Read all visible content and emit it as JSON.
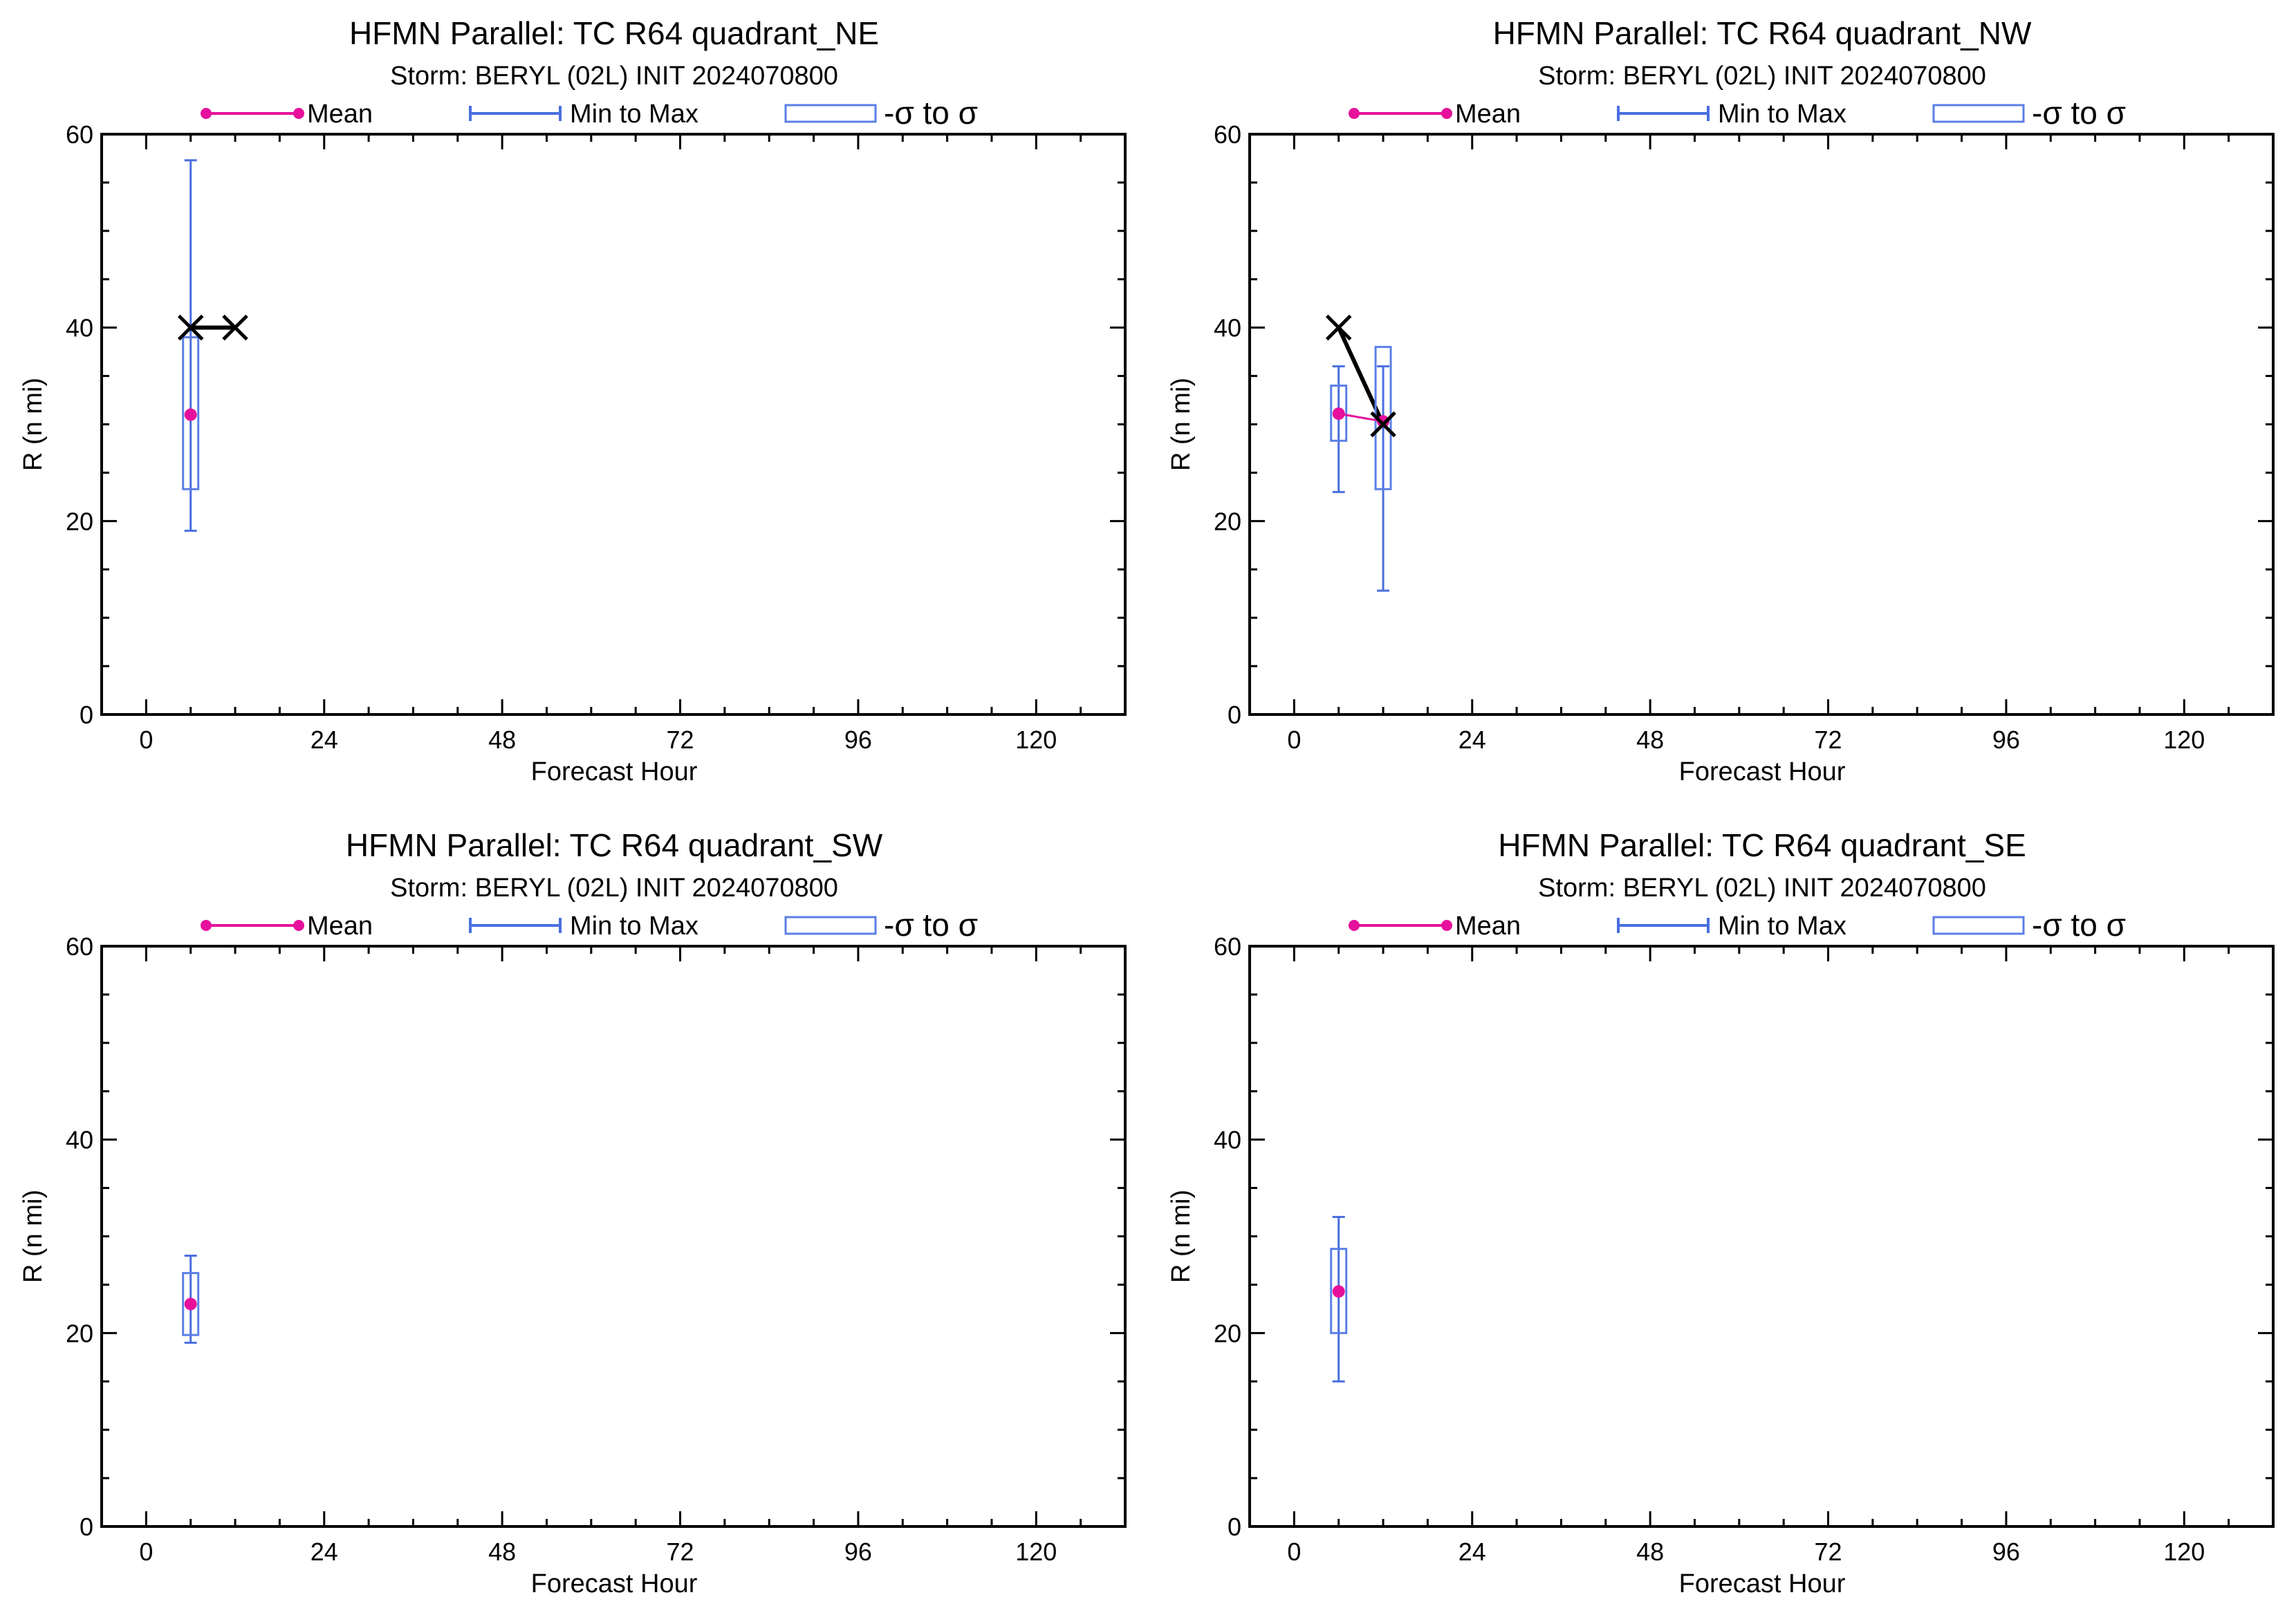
{
  "colors": {
    "mean": "#e6109c",
    "range": "#4a6fe0",
    "box": "#5b7fe6",
    "observed": "#000000",
    "axis": "#000000",
    "background": "#ffffff"
  },
  "legend": {
    "mean_label": "Mean",
    "range_label": "Min to Max",
    "sigma_label": "-σ to σ"
  },
  "chart_data": [
    {
      "type": "box",
      "title": "HFMN Parallel: TC  R64 quadrant_NE",
      "subtitle": "Storm: BERYL (02L) INIT 2024070800",
      "xlabel": "Forecast Hour",
      "ylabel": "R (n mi)",
      "xlim": [
        -6,
        132
      ],
      "ylim": [
        0,
        60
      ],
      "xticks": [
        0,
        24,
        48,
        72,
        96,
        120
      ],
      "yticks": [
        0,
        20,
        40,
        60
      ],
      "xtick_labels": [
        "0",
        "24",
        "48",
        "72",
        "96",
        "120"
      ],
      "ytick_labels": [
        "0",
        "20",
        "40",
        "60"
      ],
      "stats": [
        {
          "x": 6,
          "mean": 31,
          "min": 19,
          "max": 57.3,
          "sd_low": 23.3,
          "sd_high": 39
        }
      ],
      "mean_line": [
        [
          6,
          31
        ]
      ],
      "observed": [
        [
          6,
          40
        ],
        [
          12,
          40
        ]
      ]
    },
    {
      "type": "box",
      "title": "HFMN Parallel: TC  R64 quadrant_NW",
      "subtitle": "Storm: BERYL (02L) INIT 2024070800",
      "xlabel": "Forecast Hour",
      "ylabel": "R (n mi)",
      "xlim": [
        -6,
        132
      ],
      "ylim": [
        0,
        60
      ],
      "xticks": [
        0,
        24,
        48,
        72,
        96,
        120
      ],
      "yticks": [
        0,
        20,
        40,
        60
      ],
      "xtick_labels": [
        "0",
        "24",
        "48",
        "72",
        "96",
        "120"
      ],
      "ytick_labels": [
        "0",
        "20",
        "40",
        "60"
      ],
      "stats": [
        {
          "x": 6,
          "mean": 31.1,
          "min": 23,
          "max": 36,
          "sd_low": 28.3,
          "sd_high": 34
        },
        {
          "x": 12,
          "mean": 30.3,
          "min": 12.8,
          "max": 36,
          "sd_low": 23.3,
          "sd_high": 38
        }
      ],
      "mean_line": [
        [
          6,
          31.1
        ],
        [
          12,
          30.3
        ]
      ],
      "observed": [
        [
          6,
          40
        ],
        [
          12,
          30
        ]
      ]
    },
    {
      "type": "box",
      "title": "HFMN Parallel: TC  R64 quadrant_SW",
      "subtitle": "Storm: BERYL (02L) INIT 2024070800",
      "xlabel": "Forecast Hour",
      "ylabel": "R (n mi)",
      "xlim": [
        -6,
        132
      ],
      "ylim": [
        0,
        60
      ],
      "xticks": [
        0,
        24,
        48,
        72,
        96,
        120
      ],
      "yticks": [
        0,
        20,
        40,
        60
      ],
      "xtick_labels": [
        "0",
        "24",
        "48",
        "72",
        "96",
        "120"
      ],
      "ytick_labels": [
        "0",
        "20",
        "40",
        "60"
      ],
      "stats": [
        {
          "x": 6,
          "mean": 23,
          "min": 19,
          "max": 28,
          "sd_low": 19.8,
          "sd_high": 26.2
        }
      ],
      "mean_line": [
        [
          6,
          23
        ]
      ],
      "observed": []
    },
    {
      "type": "box",
      "title": "HFMN Parallel: TC  R64 quadrant_SE",
      "subtitle": "Storm: BERYL (02L) INIT 2024070800",
      "xlabel": "Forecast Hour",
      "ylabel": "R (n mi)",
      "xlim": [
        -6,
        132
      ],
      "ylim": [
        0,
        60
      ],
      "xticks": [
        0,
        24,
        48,
        72,
        96,
        120
      ],
      "yticks": [
        0,
        20,
        40,
        60
      ],
      "xtick_labels": [
        "0",
        "24",
        "48",
        "72",
        "96",
        "120"
      ],
      "ytick_labels": [
        "0",
        "20",
        "40",
        "60"
      ],
      "stats": [
        {
          "x": 6,
          "mean": 24.3,
          "min": 15,
          "max": 32,
          "sd_low": 20,
          "sd_high": 28.7
        }
      ],
      "mean_line": [
        [
          6,
          24.3
        ]
      ],
      "observed": []
    }
  ]
}
